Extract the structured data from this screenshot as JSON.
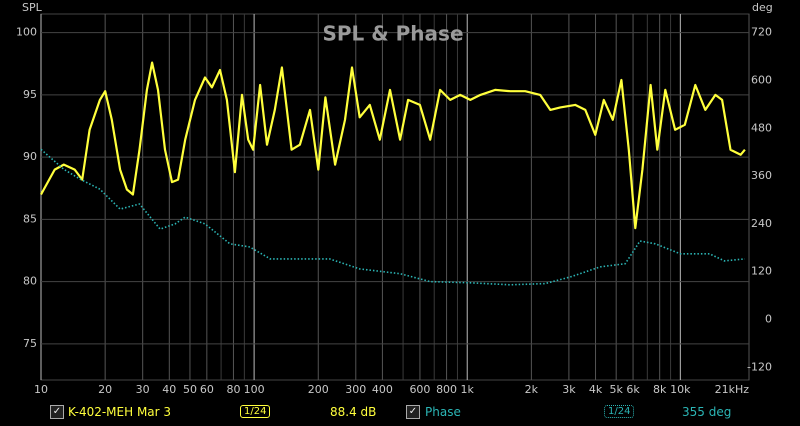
{
  "chart_data": {
    "type": "line",
    "title": "SPL & Phase",
    "y_label": "SPL",
    "y2_label": "deg",
    "xscale": "log",
    "xlim": [
      10,
      21000
    ],
    "ylim": [
      72.1,
      101.5
    ],
    "y2lim": [
      -152,
      767
    ],
    "grid": true,
    "xticks": [
      10,
      20,
      30,
      40,
      50,
      60,
      80,
      100,
      200,
      300,
      400,
      600,
      800,
      {
        "value": 1000,
        "label": "1k"
      },
      {
        "value": 2000,
        "label": "2k"
      },
      {
        "value": 3000,
        "label": "3k"
      },
      {
        "value": 4000,
        "label": "4k"
      },
      {
        "value": 5000,
        "label": "5k"
      },
      {
        "value": 6000,
        "label": "6k"
      },
      {
        "value": 8000,
        "label": "8k"
      },
      {
        "value": 10000,
        "label": "10k"
      },
      {
        "value": 21000,
        "label": "21kHz"
      }
    ],
    "x_minor_grid": [
      70,
      90,
      500,
      700,
      900,
      7000,
      9000
    ],
    "yticks": [
      75,
      80,
      85,
      90,
      95,
      100
    ],
    "y2ticks": [
      -120,
      0,
      120,
      240,
      360,
      480,
      600,
      720
    ],
    "series": [
      {
        "name": "K-402-MEH Mar 3",
        "color": "#ffff3c",
        "x": [
          10,
          11.6,
          12.8,
          14.4,
          15.6,
          16.9,
          18.9,
          20,
          21.5,
          23.5,
          25.3,
          27,
          29,
          31.4,
          33.2,
          35.4,
          38.2,
          41.2,
          44,
          47.5,
          52.8,
          58.8,
          63.4,
          69.2,
          74.5,
          81.3,
          87.7,
          93.8,
          98.9,
          106.7,
          115,
          125,
          135,
          150,
          164,
          183,
          200,
          216,
          240,
          267,
          288,
          313,
          349,
          389,
          434,
          484,
          528,
          600,
          670,
          746,
          832,
          927,
          1034,
          1153,
          1352,
          1589,
          1870,
          2201,
          2453,
          2734,
          3212,
          3580,
          3990,
          4373,
          4820,
          5290,
          5730,
          6150,
          6640,
          7250,
          7800,
          8500,
          9450,
          10500,
          11750,
          13100,
          14600,
          15700,
          17200,
          19200,
          20100
        ],
        "values": [
          87.0,
          89.0,
          89.4,
          89.0,
          88.2,
          92.2,
          94.6,
          95.3,
          93.0,
          89.0,
          87.4,
          87.0,
          90.6,
          95.4,
          97.6,
          95.4,
          90.6,
          88.0,
          88.2,
          91.4,
          94.6,
          96.4,
          95.6,
          97.0,
          94.6,
          88.8,
          95.0,
          91.4,
          90.6,
          95.8,
          91.0,
          93.8,
          97.2,
          90.6,
          91.0,
          93.8,
          89.0,
          94.8,
          89.4,
          93.0,
          97.2,
          93.2,
          94.2,
          91.4,
          95.4,
          91.4,
          94.6,
          94.2,
          91.4,
          95.4,
          94.6,
          95.0,
          94.6,
          95.0,
          95.4,
          95.3,
          95.3,
          95.0,
          93.8,
          94.0,
          94.2,
          93.8,
          91.8,
          94.6,
          93.0,
          96.2,
          90.6,
          84.3,
          89.0,
          95.8,
          90.6,
          95.4,
          92.2,
          92.6,
          95.8,
          93.8,
          95.0,
          94.6,
          90.6,
          90.2,
          90.6
        ]
      },
      {
        "name": "Phase",
        "color": "#2bb5b5",
        "axis": "y2",
        "x": [
          10,
          12.8,
          15.3,
          18.9,
          23.5,
          29,
          36.2,
          42.6,
          47.5,
          58.8,
          77,
          95.6,
          119,
          164,
          226,
          313,
          484,
          670,
          1034,
          1589,
          2320,
          3050,
          4200,
          5520,
          6470,
          7630,
          10000,
          13700,
          16100,
          20100
        ],
        "values": [
          427,
          377,
          352,
          327,
          277,
          290,
          227,
          240,
          257,
          240,
          190,
          182,
          152,
          152,
          152,
          127,
          115,
          95,
          92,
          87,
          90,
          107,
          132,
          140,
          197,
          190,
          165,
          165,
          147,
          152
        ]
      }
    ]
  },
  "footer": {
    "spl_smoothing": "1/24",
    "spl_readout": "88.4 dB",
    "phase_smoothing": "1/24",
    "phase_readout": "355 deg"
  }
}
